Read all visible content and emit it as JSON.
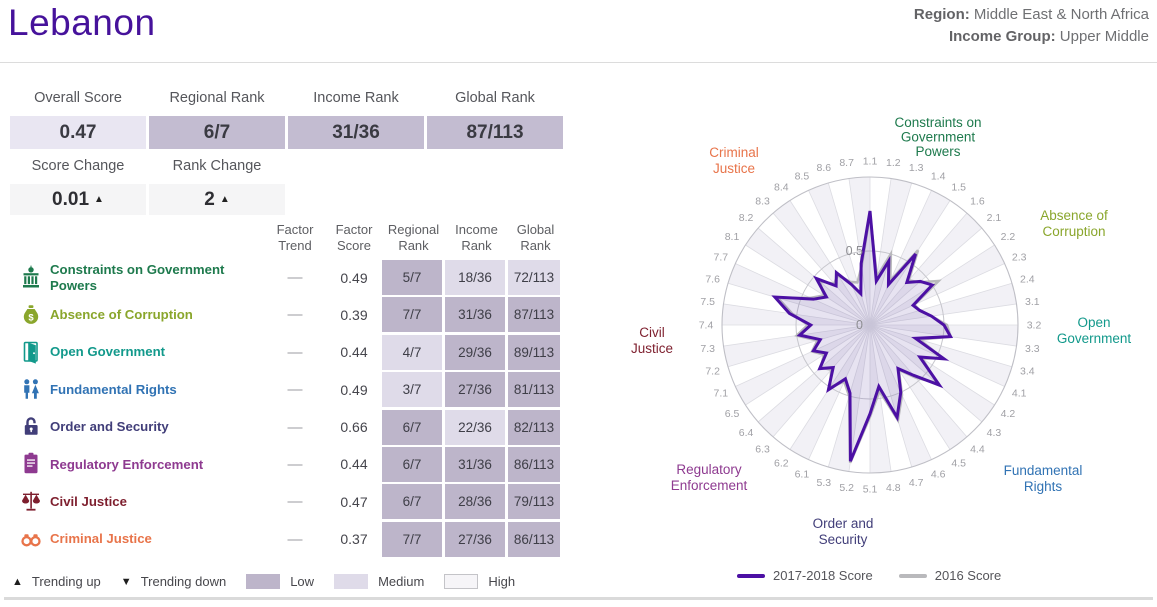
{
  "header": {
    "country": "Lebanon",
    "region_label": "Region:",
    "region_value": " Middle East & North Africa",
    "income_label": "Income Group:",
    "income_value": " Upper Middle"
  },
  "summary": {
    "stats": [
      {
        "label": "Overall Score",
        "value": "0.47",
        "style": "light"
      },
      {
        "label": "Regional Rank",
        "value": "6/7",
        "style": "dark"
      },
      {
        "label": "Income Rank",
        "value": "31/36",
        "style": "dark"
      },
      {
        "label": "Global Rank",
        "value": "87/113",
        "style": "dark"
      }
    ],
    "changes": [
      {
        "label": "Score Change",
        "value": "0.01",
        "direction": "up"
      },
      {
        "label": "Rank Change",
        "value": "2",
        "direction": "up"
      }
    ]
  },
  "glyphs": {
    "up": "▲",
    "down": "▼",
    "dash": "—"
  },
  "table": {
    "headers": [
      {
        "top": "Factor",
        "bottom": "Trend"
      },
      {
        "top": "Factor",
        "bottom": "Score"
      },
      {
        "top": "Regional",
        "bottom": "Rank"
      },
      {
        "top": "Income",
        "bottom": "Rank"
      },
      {
        "top": "Global",
        "bottom": "Rank"
      }
    ],
    "rows": [
      {
        "icon": "government-building-icon",
        "name": "Constraints on Government Powers",
        "color": "#1e7a4d",
        "trend": "—",
        "score": "0.49",
        "regional": {
          "value": "5/7",
          "level": "low"
        },
        "income": {
          "value": "18/36",
          "level": "medium"
        },
        "global": {
          "value": "72/113",
          "level": "medium"
        }
      },
      {
        "icon": "money-bag-icon",
        "name": "Absence of Corruption",
        "color": "#8aa62c",
        "trend": "—",
        "score": "0.39",
        "regional": {
          "value": "7/7",
          "level": "low"
        },
        "income": {
          "value": "31/36",
          "level": "low"
        },
        "global": {
          "value": "87/113",
          "level": "low"
        }
      },
      {
        "icon": "open-door-icon",
        "name": "Open Government",
        "color": "#12998b",
        "trend": "—",
        "score": "0.44",
        "regional": {
          "value": "4/7",
          "level": "medium"
        },
        "income": {
          "value": "29/36",
          "level": "low"
        },
        "global": {
          "value": "89/113",
          "level": "low"
        }
      },
      {
        "icon": "people-icon",
        "name": "Fundamental Rights",
        "color": "#3173b4",
        "trend": "—",
        "score": "0.49",
        "regional": {
          "value": "3/7",
          "level": "medium"
        },
        "income": {
          "value": "27/36",
          "level": "low"
        },
        "global": {
          "value": "81/113",
          "level": "low"
        }
      },
      {
        "icon": "padlock-icon",
        "name": "Order and Security",
        "color": "#413e79",
        "trend": "—",
        "score": "0.66",
        "regional": {
          "value": "6/7",
          "level": "low"
        },
        "income": {
          "value": "22/36",
          "level": "medium"
        },
        "global": {
          "value": "82/113",
          "level": "low"
        }
      },
      {
        "icon": "clipboard-icon",
        "name": "Regulatory Enforcement",
        "color": "#8e3a90",
        "trend": "—",
        "score": "0.44",
        "regional": {
          "value": "6/7",
          "level": "low"
        },
        "income": {
          "value": "31/36",
          "level": "low"
        },
        "global": {
          "value": "86/113",
          "level": "low"
        }
      },
      {
        "icon": "scales-icon",
        "name": "Civil Justice",
        "color": "#7e1f2e",
        "trend": "—",
        "score": "0.47",
        "regional": {
          "value": "6/7",
          "level": "low"
        },
        "income": {
          "value": "28/36",
          "level": "low"
        },
        "global": {
          "value": "79/113",
          "level": "low"
        }
      },
      {
        "icon": "handcuffs-icon",
        "name": "Criminal Justice",
        "color": "#e8744a",
        "trend": "—",
        "score": "0.37",
        "regional": {
          "value": "7/7",
          "level": "low"
        },
        "income": {
          "value": "27/36",
          "level": "low"
        },
        "global": {
          "value": "86/113",
          "level": "low"
        }
      }
    ]
  },
  "footer_legend": {
    "trending_up": "Trending up",
    "trending_down": "Trending down",
    "low": "Low",
    "medium": "Medium",
    "high": "High"
  },
  "colors": {
    "accent_purple": "#46129b",
    "cell_low": "#bdb5ca",
    "cell_medium": "#dfdbe9",
    "cell_high": "#f6f5f8",
    "overall_box": "#e9e6f2",
    "rank_box": "#c3bcd1",
    "change_box": "#f5f5f6",
    "series_2017": "#4c10a4",
    "series_2016": "#b9b9bc"
  },
  "chart_data": {
    "type": "radar",
    "rings": {
      "min": 0,
      "mid": 0.5,
      "max": 1,
      "ring_labels": [
        "0",
        "0.5"
      ]
    },
    "spokes": [
      "1.1",
      "1.2",
      "1.3",
      "1.4",
      "1.5",
      "1.6",
      "2.1",
      "2.2",
      "2.3",
      "2.4",
      "3.1",
      "3.2",
      "3.3",
      "3.4",
      "4.1",
      "4.2",
      "4.3",
      "4.4",
      "4.5",
      "4.6",
      "4.7",
      "4.8",
      "5.1",
      "5.2",
      "5.3",
      "6.1",
      "6.2",
      "6.3",
      "6.4",
      "6.5",
      "7.1",
      "7.2",
      "7.3",
      "7.4",
      "7.5",
      "7.6",
      "7.7",
      "8.1",
      "8.2",
      "8.3",
      "8.4",
      "8.5",
      "8.6",
      "8.7"
    ],
    "factor_labels": [
      {
        "lines": [
          "Constraints on",
          "Government",
          "Powers"
        ],
        "color": "#1e7a4d"
      },
      {
        "lines": [
          "Absence of",
          "Corruption"
        ],
        "color": "#8aa62c"
      },
      {
        "lines": [
          "Open",
          "Government"
        ],
        "color": "#12998b"
      },
      {
        "lines": [
          "Fundamental",
          "Rights"
        ],
        "color": "#3173b4"
      },
      {
        "lines": [
          "Order and",
          "Security"
        ],
        "color": "#413e79"
      },
      {
        "lines": [
          "Regulatory",
          "Enforcement"
        ],
        "color": "#8e3a90"
      },
      {
        "lines": [
          "Civil",
          "Justice"
        ],
        "color": "#7e1f2e"
      },
      {
        "lines": [
          "Criminal",
          "Justice"
        ],
        "color": "#e8744a"
      }
    ],
    "series": [
      {
        "name": "2017-2018 Score",
        "color": "#4c10a4",
        "values": [
          0.77,
          0.3,
          0.45,
          0.3,
          0.57,
          0.38,
          0.45,
          0.5,
          0.32,
          0.35,
          0.42,
          0.5,
          0.55,
          0.32,
          0.55,
          0.4,
          0.62,
          0.45,
          0.35,
          0.5,
          0.65,
          0.42,
          0.6,
          0.93,
          0.48,
          0.4,
          0.52,
          0.38,
          0.45,
          0.35,
          0.42,
          0.35,
          0.48,
          0.4,
          0.55,
          0.67,
          0.42,
          0.35,
          0.48,
          0.35,
          0.42,
          0.3,
          0.22,
          0.42
        ]
      },
      {
        "name": "2016 Score",
        "color": "#b9b9bc",
        "values": [
          0.75,
          0.33,
          0.5,
          0.33,
          0.6,
          0.4,
          0.44,
          0.55,
          0.33,
          0.35,
          0.42,
          0.52,
          0.55,
          0.35,
          0.54,
          0.42,
          0.6,
          0.47,
          0.36,
          0.52,
          0.67,
          0.45,
          0.62,
          0.94,
          0.5,
          0.42,
          0.5,
          0.4,
          0.44,
          0.37,
          0.43,
          0.37,
          0.5,
          0.42,
          0.53,
          0.65,
          0.44,
          0.37,
          0.45,
          0.37,
          0.4,
          0.32,
          0.3,
          0.4
        ]
      }
    ],
    "legend_position": "bottom"
  }
}
